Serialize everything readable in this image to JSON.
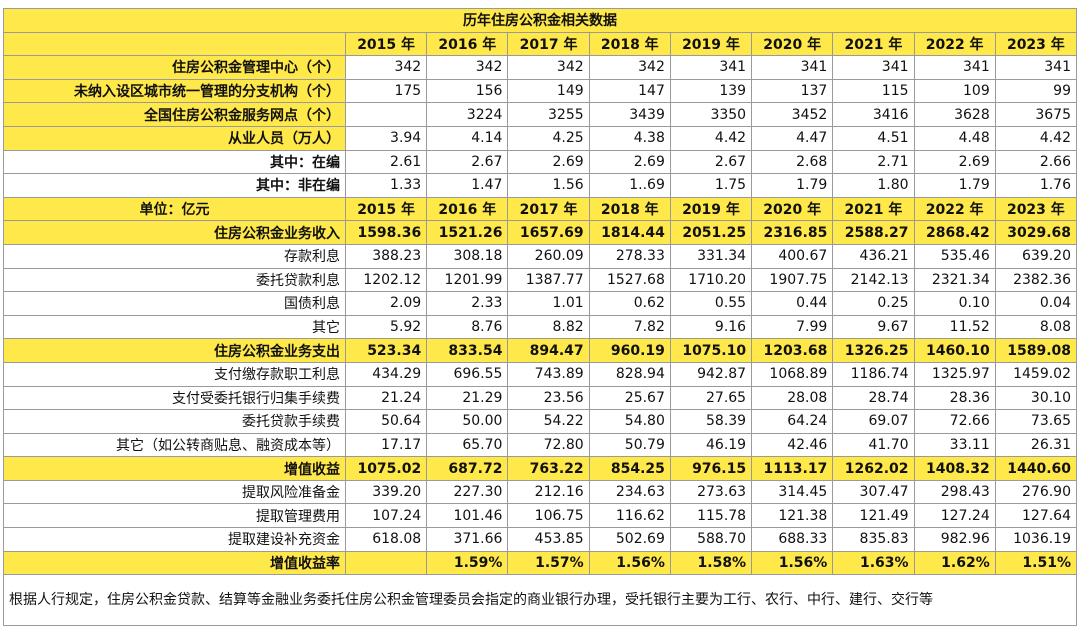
{
  "table": {
    "title": "历年住房公积金相关数据",
    "years": [
      "2015 年",
      "2016 年",
      "2017 年",
      "2018 年",
      "2019 年",
      "2020 年",
      "2021 年",
      "2022 年",
      "2023 年"
    ],
    "upper_rows": [
      {
        "label": "住房公积金管理中心（个）",
        "values": [
          "342",
          "342",
          "342",
          "342",
          "341",
          "341",
          "341",
          "341",
          "341"
        ]
      },
      {
        "label": "未纳入设区城市统一管理的分支机构（个）",
        "values": [
          "175",
          "156",
          "149",
          "147",
          "139",
          "137",
          "115",
          "109",
          "99"
        ]
      },
      {
        "label": "全国住房公积金服务网点（个）",
        "values": [
          null,
          "3224",
          "3255",
          "3439",
          "3350",
          "3452",
          "3416",
          "3628",
          "3675"
        ]
      },
      {
        "label": "从业人员（万人）",
        "values": [
          "3.94",
          "4.14",
          "4.25",
          "4.38",
          "4.42",
          "4.47",
          "4.51",
          "4.48",
          "4.42"
        ]
      },
      {
        "label": "其中：在编",
        "values": [
          "2.61",
          "2.67",
          "2.69",
          "2.69",
          "2.67",
          "2.68",
          "2.71",
          "2.69",
          "2.66"
        ]
      },
      {
        "label": "其中：非在编",
        "values": [
          "1.33",
          "1.47",
          "1.56",
          "1..69",
          "1.75",
          "1.79",
          "1.80",
          "1.79",
          "1.76"
        ]
      }
    ],
    "unit_label": "单位：亿元",
    "unit_years": [
      "2015 年",
      "2016 年",
      "2017 年",
      "2018 年",
      "2019 年",
      "2020 年",
      "2021 年",
      "2022 年",
      "2023 年"
    ],
    "lower_rows": [
      {
        "label": "住房公积金业务收入",
        "values": [
          "1598.36",
          "1521.26",
          "1657.69",
          "1814.44",
          "2051.25",
          "2316.85",
          "2588.27",
          "2868.42",
          "3029.68"
        ]
      },
      {
        "label": "存款利息",
        "values": [
          "388.23",
          "308.18",
          "260.09",
          "278.33",
          "331.34",
          "400.67",
          "436.21",
          "535.46",
          "639.20"
        ]
      },
      {
        "label": "委托贷款利息",
        "values": [
          "1202.12",
          "1201.99",
          "1387.77",
          "1527.68",
          "1710.20",
          "1907.75",
          "2142.13",
          "2321.34",
          "2382.36"
        ]
      },
      {
        "label": "国债利息",
        "values": [
          "2.09",
          "2.33",
          "1.01",
          "0.62",
          "0.55",
          "0.44",
          "0.25",
          "0.10",
          "0.04"
        ]
      },
      {
        "label": "其它",
        "values": [
          "5.92",
          "8.76",
          "8.82",
          "7.82",
          "9.16",
          "7.99",
          "9.67",
          "11.52",
          "8.08"
        ]
      },
      {
        "label": "住房公积金业务支出",
        "values": [
          "523.34",
          "833.54",
          "894.47",
          "960.19",
          "1075.10",
          "1203.68",
          "1326.25",
          "1460.10",
          "1589.08"
        ]
      },
      {
        "label": "支付缴存款职工利息",
        "values": [
          "434.29",
          "696.55",
          "743.89",
          "828.94",
          "942.87",
          "1068.89",
          "1186.74",
          "1325.97",
          "1459.02"
        ]
      },
      {
        "label": "支付受委托银行归集手续费",
        "values": [
          "21.24",
          "21.29",
          "23.56",
          "25.67",
          "27.65",
          "28.08",
          "28.74",
          "28.36",
          "30.10"
        ]
      },
      {
        "label": "委托贷款手续费",
        "values": [
          "50.64",
          "50.00",
          "54.22",
          "54.80",
          "58.39",
          "64.24",
          "69.07",
          "72.66",
          "73.65"
        ]
      },
      {
        "label": "其它（如公转商贴息、融资成本等）",
        "values": [
          "17.17",
          "65.70",
          "72.80",
          "50.79",
          "46.19",
          "42.46",
          "41.70",
          "33.11",
          "26.31"
        ]
      },
      {
        "label": "增值收益",
        "values": [
          "1075.02",
          "687.72",
          "763.22",
          "854.25",
          "976.15",
          "1113.17",
          "1262.02",
          "1408.32",
          "1440.60"
        ]
      },
      {
        "label": "提取风险准备金",
        "values": [
          "339.20",
          "227.30",
          "212.16",
          "234.63",
          "273.63",
          "314.45",
          "307.47",
          "298.43",
          "276.90"
        ]
      },
      {
        "label": "提取管理费用",
        "values": [
          "107.24",
          "101.46",
          "106.75",
          "116.62",
          "115.78",
          "121.38",
          "121.49",
          "127.24",
          "127.64"
        ]
      },
      {
        "label": "提取建设补充资金",
        "values": [
          "618.08",
          "371.66",
          "453.85",
          "502.69",
          "588.70",
          "688.33",
          "835.83",
          "982.96",
          "1036.19"
        ]
      },
      {
        "label": "增值收益率",
        "values": [
          null,
          "1.59%",
          "1.57%",
          "1.56%",
          "1.58%",
          "1.56%",
          "1.63%",
          "1.62%",
          "1.51%"
        ]
      }
    ],
    "footnote": "根据人行规定，住房公积金贷款、结算等金融业务委托住房公积金管理委员会指定的商业银行办理，受托银行主要为工行、农行、中行、建行、交行等"
  }
}
